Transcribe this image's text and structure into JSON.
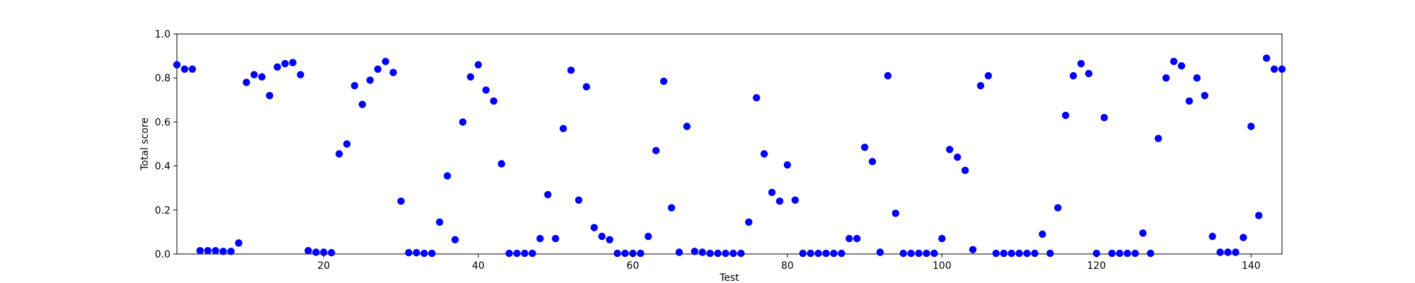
{
  "chart_data": {
    "type": "scatter",
    "xlabel": "Test",
    "ylabel": "Total score",
    "xlim": [
      1,
      144
    ],
    "ylim": [
      0.0,
      1.0
    ],
    "x_ticks": [
      20,
      40,
      60,
      80,
      100,
      120,
      140
    ],
    "y_ticks": [
      0.0,
      0.2,
      0.4,
      0.6,
      0.8,
      1.0
    ],
    "x_tick_labels": [
      "20",
      "40",
      "60",
      "80",
      "100",
      "120",
      "140"
    ],
    "y_tick_labels": [
      "0.0",
      "0.2",
      "0.4",
      "0.6",
      "0.8",
      "1.0"
    ],
    "grid": false,
    "marker_color": "#0000ff",
    "x": [
      1,
      2,
      3,
      4,
      5,
      6,
      7,
      8,
      9,
      10,
      11,
      12,
      13,
      14,
      15,
      16,
      17,
      18,
      19,
      20,
      21,
      22,
      23,
      24,
      25,
      26,
      27,
      28,
      29,
      30,
      31,
      32,
      33,
      34,
      35,
      36,
      37,
      38,
      39,
      40,
      41,
      42,
      43,
      44,
      45,
      46,
      47,
      48,
      49,
      50,
      51,
      52,
      53,
      54,
      55,
      56,
      57,
      58,
      59,
      60,
      61,
      62,
      63,
      64,
      65,
      66,
      67,
      68,
      69,
      70,
      71,
      72,
      73,
      74,
      75,
      76,
      77,
      78,
      79,
      80,
      81,
      82,
      83,
      84,
      85,
      86,
      87,
      88,
      89,
      90,
      91,
      92,
      93,
      94,
      95,
      96,
      97,
      98,
      99,
      100,
      101,
      102,
      103,
      104,
      105,
      106,
      107,
      108,
      109,
      110,
      111,
      112,
      113,
      114,
      115,
      116,
      117,
      118,
      119,
      120,
      121,
      122,
      123,
      124,
      125,
      126,
      127,
      128,
      129,
      130,
      131,
      132,
      133,
      134,
      135,
      136,
      137,
      138,
      139,
      140,
      141,
      142,
      143,
      144
    ],
    "y": [
      0.86,
      0.84,
      0.84,
      0.015,
      0.015,
      0.015,
      0.012,
      0.012,
      0.05,
      0.78,
      0.815,
      0.805,
      0.72,
      0.85,
      0.865,
      0.87,
      0.815,
      0.015,
      0.008,
      0.008,
      0.006,
      0.455,
      0.5,
      0.765,
      0.68,
      0.79,
      0.84,
      0.875,
      0.825,
      0.24,
      0.006,
      0.006,
      0.003,
      0.003,
      0.145,
      0.355,
      0.065,
      0.6,
      0.805,
      0.86,
      0.745,
      0.695,
      0.41,
      0.003,
      0.003,
      0.003,
      0.003,
      0.07,
      0.27,
      0.07,
      0.57,
      0.835,
      0.245,
      0.76,
      0.12,
      0.08,
      0.065,
      0.003,
      0.003,
      0.003,
      0.003,
      0.08,
      0.47,
      0.785,
      0.21,
      0.008,
      0.58,
      0.012,
      0.008,
      0.003,
      0.003,
      0.003,
      0.003,
      0.003,
      0.145,
      0.71,
      0.455,
      0.28,
      0.24,
      0.405,
      0.245,
      0.003,
      0.003,
      0.003,
      0.003,
      0.003,
      0.003,
      0.07,
      0.07,
      0.485,
      0.42,
      0.008,
      0.81,
      0.185,
      0.003,
      0.003,
      0.003,
      0.003,
      0.003,
      0.07,
      0.475,
      0.44,
      0.38,
      0.02,
      0.765,
      0.81,
      0.003,
      0.003,
      0.003,
      0.003,
      0.003,
      0.003,
      0.09,
      0.003,
      0.21,
      0.63,
      0.81,
      0.865,
      0.82,
      0.003,
      0.62,
      0.003,
      0.003,
      0.003,
      0.003,
      0.095,
      0.003,
      0.525,
      0.8,
      0.875,
      0.855,
      0.695,
      0.8,
      0.72,
      0.08,
      0.008,
      0.008,
      0.008,
      0.075,
      0.58,
      0.175,
      0.89,
      0.84,
      0.84
    ]
  }
}
